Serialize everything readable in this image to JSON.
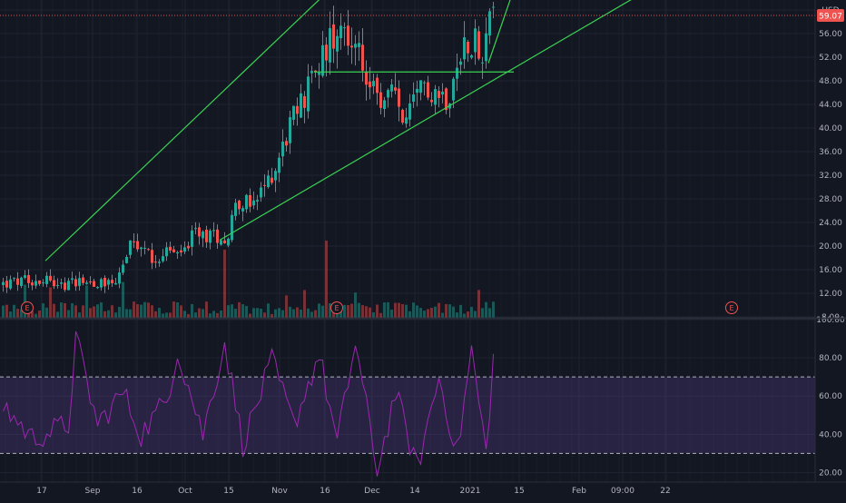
{
  "chart_data": [
    {
      "type": "candlestick",
      "currency": "USD",
      "last_price_label": "59.07",
      "ylim": [
        8,
        64
      ],
      "y_ticks": [
        "8.00",
        "12.00",
        "16.00",
        "20.00",
        "24.00",
        "28.00",
        "32.00",
        "36.00",
        "40.00",
        "44.00",
        "48.00",
        "52.00",
        "56.00",
        "60.00"
      ],
      "x_ticks": [
        "17",
        "Sep",
        "16",
        "Oct",
        "15",
        "Nov",
        "16",
        "Dec",
        "14",
        "2021",
        "15",
        "Feb",
        "09:00",
        "22"
      ],
      "x_tick_types": [
        "day",
        "month",
        "day",
        "month",
        "day",
        "month",
        "day",
        "month",
        "day",
        "year",
        "day",
        "month",
        "time",
        "day"
      ],
      "earnings_marker_label": "E",
      "price_path": [
        {
          "t": 0,
          "p": 13.5
        },
        {
          "t": 14,
          "p": 14.6
        },
        {
          "t": 18,
          "p": 13.1
        },
        {
          "t": 22,
          "p": 14.6
        },
        {
          "t": 25,
          "p": 13.8
        },
        {
          "t": 32,
          "p": 14.2
        },
        {
          "t": 36,
          "p": 19.8
        },
        {
          "t": 40,
          "p": 19.3
        },
        {
          "t": 42,
          "p": 17.7
        },
        {
          "t": 47,
          "p": 19.4
        },
        {
          "t": 49,
          "p": 18.2
        },
        {
          "t": 54,
          "p": 22.1
        },
        {
          "t": 63,
          "p": 21.5
        },
        {
          "t": 65,
          "p": 28.1
        },
        {
          "t": 70,
          "p": 26.5
        },
        {
          "t": 76,
          "p": 33.5
        },
        {
          "t": 80,
          "p": 40.5
        },
        {
          "t": 84,
          "p": 45.5
        },
        {
          "t": 90,
          "p": 53.5
        },
        {
          "t": 94,
          "p": 59.0
        },
        {
          "t": 100,
          "p": 50.5
        },
        {
          "t": 104,
          "p": 44.0
        },
        {
          "t": 108,
          "p": 46.0
        },
        {
          "t": 112,
          "p": 40.8
        },
        {
          "t": 117,
          "p": 47.5
        },
        {
          "t": 121,
          "p": 46.0
        },
        {
          "t": 124,
          "p": 45.0
        },
        {
          "t": 128,
          "p": 54.5
        },
        {
          "t": 131,
          "p": 55.5
        },
        {
          "t": 132,
          "p": 50.5
        },
        {
          "t": 135,
          "p": 59.5
        }
      ],
      "trendlines": [
        {
          "name": "upper-channel",
          "from": {
            "t": 12,
            "p": 17.5
          },
          "to": {
            "t": 110,
            "p": 75.0
          }
        },
        {
          "name": "lower-channel",
          "from": {
            "t": 60,
            "p": 21.0
          },
          "to": {
            "t": 174,
            "p": 62.0
          }
        },
        {
          "name": "breakout-level",
          "from": {
            "t": 86,
            "p": 49.5
          },
          "to": {
            "t": 141,
            "p": 49.5
          }
        },
        {
          "name": "projection-arrow",
          "from": {
            "t": 134,
            "p": 51.0
          },
          "to": {
            "t": 141,
            "p": 63.5
          }
        }
      ],
      "colors": {
        "up": "#26a69a",
        "down": "#ef5350",
        "trend": "#39d353",
        "last_price_line": "#ef5350",
        "last_price_badge": "#ef5350"
      }
    },
    {
      "type": "line",
      "indicator": "RSI",
      "ylim": [
        15,
        100
      ],
      "y_ticks": [
        "20.00",
        "40.00",
        "60.00",
        "80.00",
        "100.00"
      ],
      "bands": {
        "upper": 70,
        "lower": 30
      },
      "rsi_keypoints": [
        {
          "t": 0,
          "v": 55
        },
        {
          "t": 8,
          "v": 38
        },
        {
          "t": 18,
          "v": 45
        },
        {
          "t": 20,
          "v": 90
        },
        {
          "t": 26,
          "v": 45
        },
        {
          "t": 33,
          "v": 62
        },
        {
          "t": 38,
          "v": 40
        },
        {
          "t": 45,
          "v": 58
        },
        {
          "t": 48,
          "v": 84
        },
        {
          "t": 55,
          "v": 40
        },
        {
          "t": 61,
          "v": 88
        },
        {
          "t": 66,
          "v": 35
        },
        {
          "t": 74,
          "v": 78
        },
        {
          "t": 80,
          "v": 45
        },
        {
          "t": 87,
          "v": 82
        },
        {
          "t": 92,
          "v": 35
        },
        {
          "t": 97,
          "v": 88
        },
        {
          "t": 103,
          "v": 20
        },
        {
          "t": 108,
          "v": 62
        },
        {
          "t": 114,
          "v": 22
        },
        {
          "t": 120,
          "v": 70
        },
        {
          "t": 125,
          "v": 30
        },
        {
          "t": 129,
          "v": 84
        },
        {
          "t": 133,
          "v": 30
        },
        {
          "t": 135,
          "v": 80
        }
      ],
      "colors": {
        "line": "#9c27b0",
        "band_fill": "#7e57c2",
        "band_line": "#b2b5be"
      }
    }
  ]
}
